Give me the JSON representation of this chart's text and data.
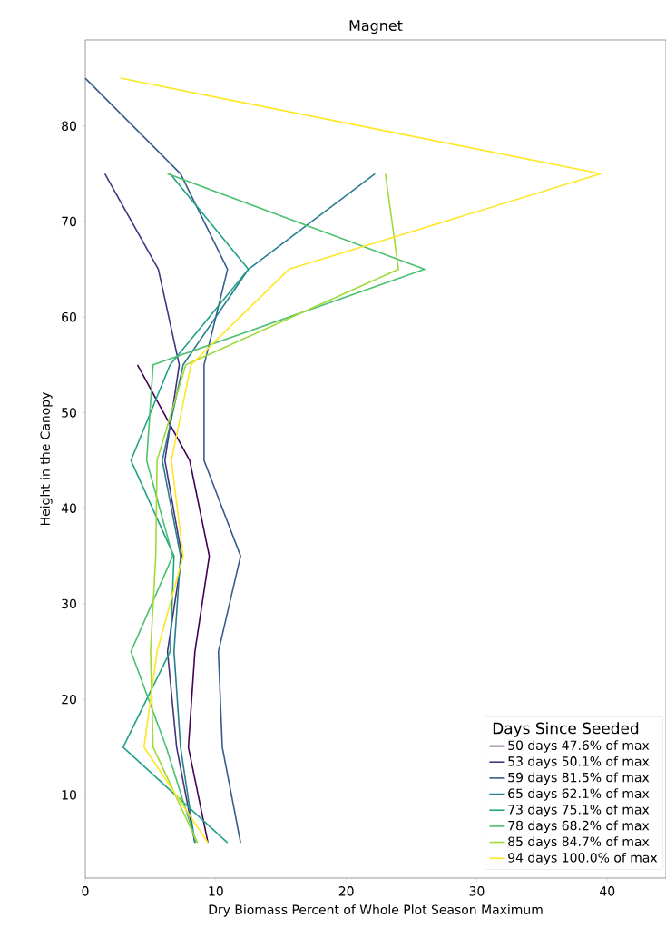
{
  "chart_data": {
    "type": "line",
    "title": "Magnet",
    "xlabel": "Dry Biomass Percent of Whole Plot Season Maximum",
    "ylabel": "Height in the Canopy",
    "legend_title": "Days Since Seeded",
    "legend": "bottom right",
    "xlim": [
      0,
      44.5
    ],
    "ylim": [
      1.3,
      89
    ],
    "xticks": [
      0,
      10,
      20,
      30,
      40
    ],
    "yticks": [
      10,
      20,
      30,
      40,
      50,
      60,
      70,
      80
    ],
    "series": [
      {
        "name": "50 days 47.6% of max",
        "color": "#440154",
        "x": [
          9.4,
          7.9,
          8.4,
          9.5,
          8.0,
          4.0
        ],
        "values": [
          5,
          15,
          25,
          35,
          45,
          55
        ]
      },
      {
        "name": "53 days 50.1% of max",
        "color": "#46327e",
        "x": [
          8.4,
          7.0,
          6.3,
          7.4,
          6.1,
          7.2,
          5.6,
          1.5
        ],
        "values": [
          5,
          15,
          25,
          35,
          45,
          55,
          65,
          75
        ]
      },
      {
        "name": "59 days 81.5% of max",
        "color": "#365c8d",
        "x": [
          11.9,
          10.5,
          10.2,
          11.9,
          9.1,
          9.1,
          10.9,
          7.3,
          0.0
        ],
        "values": [
          5,
          15,
          25,
          35,
          45,
          55,
          65,
          75,
          85
        ]
      },
      {
        "name": "65 days 62.1% of max",
        "color": "#277f8e",
        "x": [
          8.4,
          7.3,
          6.8,
          7.3,
          5.9,
          7.5,
          12.5,
          22.2
        ],
        "values": [
          5,
          15,
          25,
          35,
          45,
          55,
          65,
          75
        ]
      },
      {
        "name": "73 days 75.1% of max",
        "color": "#1fa187",
        "x": [
          10.9,
          2.9,
          6.5,
          6.8,
          3.5,
          6.5,
          12.5,
          6.5
        ],
        "values": [
          5,
          15,
          25,
          35,
          45,
          55,
          65,
          75
        ]
      },
      {
        "name": "78 days 68.2% of max",
        "color": "#4ac16d",
        "x": [
          8.5,
          6.2,
          3.5,
          6.7,
          4.7,
          5.2,
          26.0,
          6.3
        ],
        "values": [
          5,
          15,
          25,
          35,
          45,
          55,
          65,
          75
        ]
      },
      {
        "name": "85 days 84.7% of max",
        "color": "#a0da39",
        "x": [
          8.6,
          5.2,
          5.0,
          5.4,
          5.5,
          7.7,
          24.0,
          23.0
        ],
        "values": [
          5,
          15,
          25,
          35,
          45,
          55,
          65,
          75
        ]
      },
      {
        "name": "94 days 100.0% of max",
        "color": "#fde725",
        "x": [
          9.4,
          4.5,
          5.5,
          7.5,
          6.6,
          8.1,
          15.6,
          39.5,
          2.7
        ],
        "values": [
          5,
          15,
          25,
          35,
          45,
          55,
          65,
          75,
          85
        ]
      }
    ]
  }
}
